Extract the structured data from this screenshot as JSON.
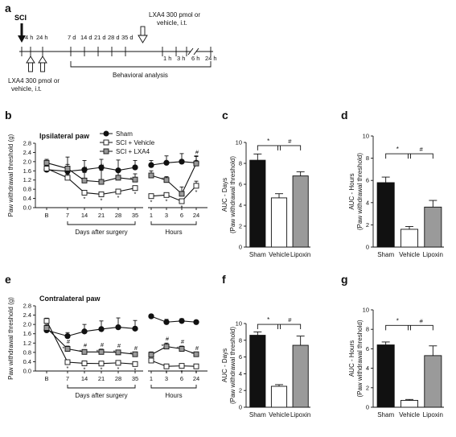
{
  "colors": {
    "sham": "#111111",
    "vehicle": "#ffffff",
    "lxa4": "#9a9a9a",
    "stroke": "#111111"
  },
  "panel_letters": [
    "a",
    "b",
    "c",
    "d",
    "e",
    "f",
    "g"
  ],
  "timeline": {
    "sci_label": "SCI",
    "early_ticks": [
      "4 h",
      "24 h"
    ],
    "day_ticks": [
      "7 d",
      "14 d",
      "21 d",
      "28 d",
      "35 d"
    ],
    "hour_ticks": [
      "1 h",
      "3 h",
      "6 h",
      "24 h"
    ],
    "lxa4_top": [
      "LXA4 300 pmol or",
      "vehicle, i.t."
    ],
    "lxa4_bottom": [
      "LXA4 300 pmol or",
      "vehicle, i.t."
    ],
    "behavioral": "Behavioral analysis"
  },
  "legend": {
    "sham": "Sham",
    "vehicle": "SCI + Vehicle",
    "lxa4": "SCI + LXA4"
  },
  "line_common": {
    "ylabel": "Paw withdrawal threshold (g)",
    "yticks": [
      "0.0",
      "0.4",
      "0.8",
      "1.2",
      "1.6",
      "2.0",
      "2.4",
      "2.8"
    ],
    "days_xlabel": "Days after surgery",
    "hours_xlabel": "Hours",
    "day_ticklabels": [
      "B",
      "7",
      "14",
      "21",
      "28",
      "35"
    ],
    "hour_ticklabels": [
      "1",
      "3",
      "6",
      "24"
    ]
  },
  "bar_common": {
    "categories": [
      "Sham",
      "Vehicle",
      "Lipoxin"
    ],
    "yticks": [
      "0",
      "2",
      "4",
      "6",
      "8",
      "10"
    ],
    "sig_star": "*",
    "sig_hash": "#"
  },
  "chart_data": [
    {
      "panel": "b",
      "type": "line",
      "title": "Ipsilateral paw",
      "ylabel": "Paw withdrawal threshold (g)",
      "ylim": [
        0,
        2.8
      ],
      "x_days": [
        "B",
        "7",
        "14",
        "21",
        "28",
        "35"
      ],
      "x_hours": [
        "1",
        "3",
        "6",
        "24"
      ],
      "series": [
        {
          "name": "Sham",
          "days": [
            1.65,
            1.58,
            1.65,
            1.75,
            1.62,
            1.75
          ],
          "days_err": [
            0.12,
            0.3,
            0.4,
            0.35,
            0.45,
            0.3
          ],
          "hours": [
            1.85,
            1.95,
            2.0,
            1.95
          ],
          "hours_err": [
            0.2,
            0.3,
            0.35,
            0.3
          ]
        },
        {
          "name": "SCI + Vehicle",
          "days": [
            1.7,
            1.3,
            0.65,
            0.58,
            0.7,
            0.85
          ],
          "days_err": [
            0.12,
            0.15,
            0.06,
            0.05,
            0.06,
            0.08
          ],
          "hours": [
            0.5,
            0.55,
            0.28,
            0.95
          ],
          "hours_err": [
            0.06,
            0.08,
            0.05,
            0.2
          ]
        },
        {
          "name": "SCI + LXA4",
          "days": [
            1.95,
            1.7,
            1.18,
            1.12,
            1.3,
            1.22
          ],
          "days_err": [
            0.15,
            0.5,
            0.35,
            0.5,
            0.3,
            0.25
          ],
          "hours": [
            1.4,
            1.2,
            0.6,
            1.92
          ],
          "hours_err": [
            0.2,
            0.15,
            0.3,
            0.3
          ]
        }
      ],
      "annotations": {
        "vehicle_star": [
          0,
          0,
          1,
          1,
          1,
          1,
          1,
          1,
          1,
          1
        ],
        "lxa4_hash": [
          0,
          0,
          1,
          1,
          0,
          0,
          0,
          0,
          0,
          1
        ],
        "lxa4_star": [
          0,
          0,
          0,
          0,
          0,
          1,
          0,
          1,
          0,
          0
        ]
      }
    },
    {
      "panel": "e",
      "type": "line",
      "title": "Contralateral paw",
      "ylabel": "Paw withdrawal threshold (g)",
      "ylim": [
        0,
        2.8
      ],
      "x_days": [
        "B",
        "7",
        "14",
        "21",
        "28",
        "35"
      ],
      "x_hours": [
        "1",
        "3",
        "6",
        "24"
      ],
      "series": [
        {
          "name": "Sham",
          "days": [
            1.75,
            1.5,
            1.7,
            1.8,
            1.88,
            1.82
          ],
          "days_err": [
            0.1,
            0.15,
            0.3,
            0.35,
            0.4,
            0.35
          ],
          "hours": [
            2.35,
            2.1,
            2.15,
            2.1
          ],
          "hours_err": [
            0.08,
            0.12,
            0.1,
            0.08
          ]
        },
        {
          "name": "SCI + Vehicle",
          "days": [
            2.15,
            0.38,
            0.33,
            0.32,
            0.35,
            0.3
          ],
          "days_err": [
            0.12,
            0.05,
            0.04,
            0.04,
            0.05,
            0.04
          ],
          "hours": [
            0.45,
            0.2,
            0.22,
            0.2
          ],
          "hours_err": [
            0.05,
            0.04,
            0.04,
            0.03
          ]
        },
        {
          "name": "SCI + LXA4",
          "days": [
            1.85,
            0.95,
            0.82,
            0.82,
            0.8,
            0.72
          ],
          "days_err": [
            0.15,
            0.12,
            0.1,
            0.12,
            0.1,
            0.08
          ],
          "hours": [
            0.7,
            1.05,
            0.95,
            0.72
          ],
          "hours_err": [
            0.12,
            0.15,
            0.12,
            0.08
          ]
        }
      ],
      "annotations": {
        "vehicle_star": [
          0,
          1,
          1,
          1,
          1,
          1,
          0,
          1,
          1,
          1
        ],
        "lxa4_hash": [
          0,
          1,
          1,
          1,
          1,
          1,
          0,
          1,
          1,
          1
        ],
        "lxa4_star": [
          0,
          1,
          1,
          1,
          1,
          1,
          0,
          1,
          1,
          1
        ]
      }
    },
    {
      "panel": "c",
      "type": "bar",
      "ylabel": [
        "AUC - Days",
        "(Paw withdrawal threshold)"
      ],
      "ylim": [
        0,
        10
      ],
      "categories": [
        "Sham",
        "Vehicle",
        "Lipoxin"
      ],
      "values": [
        8.3,
        4.7,
        6.8
      ],
      "errors": [
        0.6,
        0.4,
        0.4
      ]
    },
    {
      "panel": "d",
      "type": "bar",
      "ylabel": [
        "AUC - Hours",
        "(Paw withdrawal threshold)"
      ],
      "ylim": [
        0,
        10
      ],
      "categories": [
        "Sham",
        "Vehicle",
        "Lipoxin"
      ],
      "values": [
        5.8,
        1.6,
        3.6
      ],
      "errors": [
        0.5,
        0.25,
        0.6
      ]
    },
    {
      "panel": "f",
      "type": "bar",
      "ylabel": [
        "AUC - Days",
        "(Paw withdrawal threshold)"
      ],
      "ylim": [
        0,
        10
      ],
      "categories": [
        "Sham",
        "Vehicle",
        "Lipoxin"
      ],
      "values": [
        8.6,
        2.5,
        7.4
      ],
      "errors": [
        0.4,
        0.2,
        1.1
      ]
    },
    {
      "panel": "g",
      "type": "bar",
      "ylabel": [
        "AUC - Hours",
        "(Paw withdrawal threshold)"
      ],
      "ylim": [
        0,
        10
      ],
      "categories": [
        "Sham",
        "Vehicle",
        "Lipoxin"
      ],
      "values": [
        6.4,
        0.7,
        5.3
      ],
      "errors": [
        0.3,
        0.1,
        1.0
      ]
    }
  ]
}
